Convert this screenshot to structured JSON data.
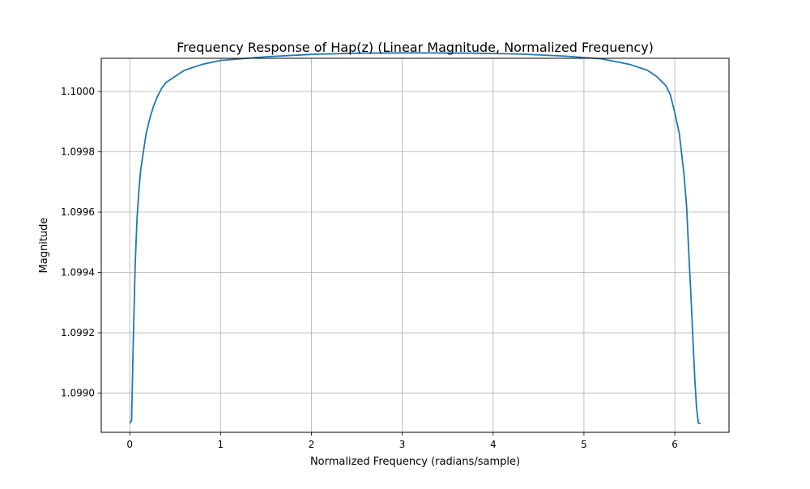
{
  "chart_data": {
    "type": "line",
    "title": "Frequency Response of Hap(z) (Linear Magnitude, Normalized Frequency)",
    "xlabel": "Normalized Frequency (radians/sample)",
    "ylabel": "Magnitude",
    "xlim": [
      -0.314,
      6.597
    ],
    "ylim": [
      1.09887,
      1.10011
    ],
    "xticks": [
      0,
      1,
      2,
      3,
      4,
      5,
      6
    ],
    "xtick_labels": [
      "0",
      "1",
      "2",
      "3",
      "4",
      "5",
      "6"
    ],
    "yticks": [
      1.099,
      1.0992,
      1.0994,
      1.0996,
      1.0998,
      1.1
    ],
    "ytick_labels": [
      "1.0990",
      "1.0992",
      "1.0994",
      "1.0996",
      "1.0998",
      "1.1000"
    ],
    "grid": true,
    "series": [
      {
        "color": "#1f77b4",
        "x": [
          0.0,
          0.02,
          0.04,
          0.06,
          0.08,
          0.1,
          0.12,
          0.15,
          0.18,
          0.22,
          0.26,
          0.3,
          0.35,
          0.4,
          0.5,
          0.6,
          0.8,
          1.0,
          1.5,
          2.0,
          2.5,
          3.1416,
          3.8,
          4.3,
          4.8,
          5.2,
          5.5,
          5.7,
          5.8,
          5.9,
          5.95,
          6.0,
          6.05,
          6.1,
          6.13,
          6.16,
          6.18,
          6.2,
          6.22,
          6.24,
          6.26,
          6.2832
        ],
        "y": [
          1.0989,
          1.09891,
          1.09919,
          1.09943,
          1.09958,
          1.09967,
          1.09974,
          1.0998,
          1.09986,
          1.09991,
          1.09995,
          1.09998,
          1.10001,
          1.10003,
          1.10005,
          1.10007,
          1.10009,
          1.100103,
          1.100115,
          1.100123,
          1.100127,
          1.100128,
          1.100127,
          1.100124,
          1.100117,
          1.100108,
          1.10009,
          1.10007,
          1.10005,
          1.10002,
          1.09999,
          1.09993,
          1.09986,
          1.09973,
          1.09962,
          1.09943,
          1.09931,
          1.09918,
          1.09905,
          1.09895,
          1.0989,
          1.0989
        ]
      }
    ]
  }
}
